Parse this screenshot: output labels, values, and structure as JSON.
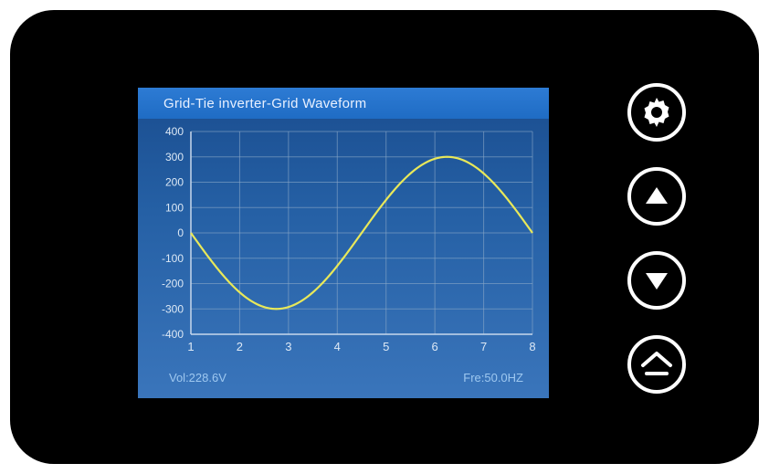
{
  "title": "Grid-Tie inverter-Grid Waveform",
  "status": {
    "voltage_label": "Vol:228.6V",
    "frequency_label": "Fre:50.0HZ"
  },
  "chart": {
    "type": "line",
    "y_ticks": [
      400,
      300,
      200,
      100,
      0,
      -100,
      -200,
      -300,
      -400
    ],
    "x_ticks": [
      1,
      2,
      3,
      4,
      5,
      6,
      7,
      8
    ],
    "ylim": [
      -400,
      400
    ],
    "xlim": [
      1,
      8
    ],
    "amplitude": 300,
    "line_color": "#e8e85a",
    "line_width": 2.2,
    "grid_color": "#8aa8c8",
    "axis_color": "#c8d8ec",
    "label_color": "#dce8f5",
    "background_gradient": [
      "#1a4d8f",
      "#2560a5",
      "#3a75bb"
    ],
    "title_bg_gradient": [
      "#2d7bd4",
      "#1f6cc4"
    ],
    "label_fontsize": 12
  },
  "buttons": {
    "settings": "settings",
    "up": "up",
    "down": "down",
    "home": "home"
  },
  "colors": {
    "device_bg": "#000000",
    "button_stroke": "#ffffff",
    "status_text": "#9ec8f0"
  }
}
